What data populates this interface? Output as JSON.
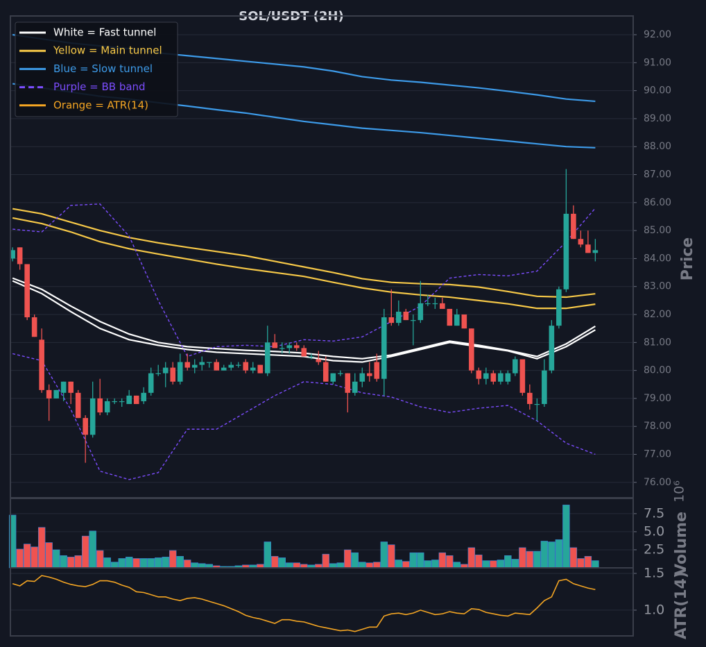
{
  "chart_data": [
    {
      "type": "candlestick",
      "title": "SOL/USDT (2H)",
      "ylabel": "Price",
      "xlim": [
        -0.3,
        85.2
      ],
      "ylim": [
        75.45,
        92.67
      ],
      "grid": true,
      "up_color": "#26a69a",
      "down_color": "#ef5350",
      "yticks": [
        {
          "value": 76,
          "label": "76.00"
        },
        {
          "value": 77,
          "label": "77.00"
        },
        {
          "value": 78,
          "label": "78.00"
        },
        {
          "value": 79,
          "label": "79.00"
        },
        {
          "value": 80,
          "label": "80.00"
        },
        {
          "value": 81,
          "label": "81.00"
        },
        {
          "value": 82,
          "label": "82.00"
        },
        {
          "value": 83,
          "label": "83.00"
        },
        {
          "value": 84,
          "label": "84.00"
        },
        {
          "value": 85,
          "label": "85.00"
        },
        {
          "value": 86,
          "label": "86.00"
        },
        {
          "value": 87,
          "label": "87.00"
        },
        {
          "value": 88,
          "label": "88.00"
        },
        {
          "value": 89,
          "label": "89.00"
        },
        {
          "value": 90,
          "label": "90.00"
        },
        {
          "value": 91,
          "label": "91.00"
        },
        {
          "value": 92,
          "label": "92.00"
        }
      ],
      "ohlc": [
        [
          84.0,
          84.4,
          83.9,
          84.3
        ],
        [
          84.4,
          84.4,
          83.6,
          83.8
        ],
        [
          83.8,
          83.8,
          81.8,
          81.9
        ],
        [
          81.9,
          82.0,
          81.2,
          81.2
        ],
        [
          81.1,
          81.5,
          79.2,
          79.3
        ],
        [
          79.3,
          79.5,
          78.2,
          79.0
        ],
        [
          79.0,
          79.3,
          79.0,
          79.3
        ],
        [
          79.2,
          79.6,
          78.9,
          79.6
        ],
        [
          79.6,
          79.6,
          78.8,
          79.2
        ],
        [
          79.2,
          79.3,
          78.3,
          78.3
        ],
        [
          78.3,
          78.4,
          76.7,
          77.7
        ],
        [
          77.7,
          79.6,
          77.6,
          79.0
        ],
        [
          79.0,
          79.7,
          78.4,
          78.5
        ],
        [
          78.5,
          79.0,
          78.4,
          78.9
        ],
        [
          78.9,
          79.0,
          78.8,
          78.9
        ],
        [
          78.9,
          79.0,
          78.7,
          78.9
        ],
        [
          78.8,
          79.3,
          78.8,
          79.1
        ],
        [
          79.1,
          79.1,
          78.8,
          78.8
        ],
        [
          78.9,
          79.4,
          78.8,
          79.2
        ],
        [
          79.2,
          80.1,
          79.1,
          79.9
        ],
        [
          79.9,
          80.2,
          79.8,
          79.9
        ],
        [
          79.9,
          80.3,
          79.4,
          80.1
        ],
        [
          80.1,
          80.3,
          79.5,
          79.6
        ],
        [
          79.6,
          80.6,
          79.5,
          80.3
        ],
        [
          80.3,
          80.6,
          80.0,
          80.1
        ],
        [
          80.1,
          80.4,
          79.9,
          80.2
        ],
        [
          80.2,
          80.5,
          80.0,
          80.3
        ],
        [
          80.3,
          80.3,
          80.1,
          80.3
        ],
        [
          80.3,
          80.4,
          80.0,
          80.0
        ],
        [
          80.0,
          80.2,
          80.0,
          80.1
        ],
        [
          80.1,
          80.3,
          80.0,
          80.2
        ],
        [
          80.2,
          80.3,
          80.1,
          80.2
        ],
        [
          80.3,
          80.4,
          79.9,
          80.0
        ],
        [
          80.0,
          80.3,
          79.9,
          80.1
        ],
        [
          80.2,
          80.2,
          79.9,
          79.9
        ],
        [
          79.9,
          81.6,
          79.8,
          81.0
        ],
        [
          81.0,
          81.3,
          80.8,
          80.8
        ],
        [
          80.8,
          81.0,
          80.6,
          80.8
        ],
        [
          80.8,
          81.0,
          80.6,
          80.9
        ],
        [
          80.9,
          81.0,
          80.7,
          80.8
        ],
        [
          80.8,
          80.9,
          80.5,
          80.5
        ],
        [
          80.5,
          80.6,
          80.4,
          80.5
        ],
        [
          80.4,
          80.7,
          80.2,
          80.3
        ],
        [
          80.3,
          80.5,
          79.6,
          79.6
        ],
        [
          79.6,
          79.9,
          79.5,
          79.9
        ],
        [
          79.9,
          80.0,
          79.8,
          79.9
        ],
        [
          79.9,
          79.9,
          78.5,
          79.2
        ],
        [
          79.2,
          79.9,
          79.1,
          79.6
        ],
        [
          79.6,
          80.1,
          79.4,
          79.9
        ],
        [
          79.9,
          80.3,
          79.6,
          79.8
        ],
        [
          80.3,
          80.6,
          79.6,
          79.7
        ],
        [
          79.7,
          82.2,
          79.1,
          81.9
        ],
        [
          81.9,
          82.9,
          81.6,
          81.7
        ],
        [
          81.7,
          82.5,
          81.6,
          82.1
        ],
        [
          82.1,
          82.2,
          81.8,
          81.8
        ],
        [
          81.8,
          82.0,
          80.9,
          81.8
        ],
        [
          81.8,
          83.2,
          81.7,
          82.4
        ],
        [
          82.4,
          82.7,
          82.3,
          82.4
        ],
        [
          82.4,
          82.6,
          82.2,
          82.4
        ],
        [
          82.4,
          82.6,
          82.2,
          82.2
        ],
        [
          82.2,
          82.2,
          81.6,
          81.6
        ],
        [
          81.6,
          82.2,
          81.6,
          82.0
        ],
        [
          82.0,
          82.0,
          81.5,
          81.5
        ],
        [
          81.5,
          81.5,
          79.9,
          80.0
        ],
        [
          80.0,
          80.1,
          79.5,
          79.7
        ],
        [
          79.7,
          80.1,
          79.5,
          79.9
        ],
        [
          79.9,
          80.0,
          79.5,
          79.6
        ],
        [
          79.6,
          80.0,
          79.5,
          79.9
        ],
        [
          79.6,
          80.0,
          79.5,
          79.9
        ],
        [
          79.9,
          80.5,
          79.8,
          80.4
        ],
        [
          80.4,
          80.4,
          79.1,
          79.2
        ],
        [
          79.2,
          79.5,
          78.6,
          78.8
        ],
        [
          78.8,
          79.0,
          78.2,
          78.8
        ],
        [
          78.8,
          80.4,
          78.7,
          80.0
        ],
        [
          80.0,
          81.8,
          79.9,
          81.6
        ],
        [
          81.6,
          83.0,
          81.5,
          82.9
        ],
        [
          82.9,
          87.2,
          82.8,
          85.6
        ],
        [
          85.6,
          85.9,
          84.7,
          84.7
        ],
        [
          84.7,
          85.0,
          84.4,
          84.5
        ],
        [
          84.5,
          85.0,
          84.2,
          84.2
        ],
        [
          84.2,
          84.7,
          83.9,
          84.3
        ]
      ],
      "line_x": [
        0,
        4,
        8,
        12,
        16,
        20,
        24,
        28,
        32,
        36,
        40,
        44,
        48,
        52,
        56,
        60,
        64,
        68,
        72,
        76,
        80
      ],
      "series": [
        {
          "name": "White = Fast tunnel",
          "color": "#ffffff",
          "lines": [
            [
              83.3,
              82.9,
              82.3,
              81.75,
              81.3,
              81.0,
              80.85,
              80.78,
              80.72,
              80.68,
              80.62,
              80.5,
              80.42,
              80.55,
              80.8,
              81.05,
              80.9,
              80.72,
              80.5,
              80.95,
              81.58
            ],
            [
              83.2,
              82.75,
              82.1,
              81.5,
              81.1,
              80.9,
              80.75,
              80.65,
              80.6,
              80.55,
              80.5,
              80.35,
              80.3,
              80.5,
              80.75,
              81.0,
              80.85,
              80.7,
              80.42,
              80.85,
              81.45
            ]
          ]
        },
        {
          "name": "Yellow = Main tunnel",
          "color": "#f7c948",
          "lines": [
            [
              85.78,
              85.6,
              85.3,
              85.0,
              84.75,
              84.56,
              84.4,
              84.25,
              84.1,
              83.9,
              83.7,
              83.5,
              83.28,
              83.15,
              83.1,
              83.07,
              82.98,
              82.82,
              82.65,
              82.62,
              82.74
            ],
            [
              85.45,
              85.25,
              84.95,
              84.6,
              84.35,
              84.16,
              83.98,
              83.8,
              83.64,
              83.5,
              83.36,
              83.15,
              82.95,
              82.8,
              82.7,
              82.62,
              82.5,
              82.38,
              82.22,
              82.22,
              82.37
            ]
          ]
        },
        {
          "name": "Blue = Slow tunnel",
          "color": "#3d9be9",
          "lines": [
            [
              92.0,
              91.85,
              91.7,
              91.6,
              91.5,
              91.35,
              91.25,
              91.15,
              91.05,
              90.95,
              90.85,
              90.7,
              90.5,
              90.38,
              90.3,
              90.2,
              90.1,
              89.98,
              89.85,
              89.7,
              89.62
            ],
            [
              90.25,
              90.1,
              89.95,
              89.8,
              89.7,
              89.57,
              89.45,
              89.32,
              89.2,
              89.05,
              88.9,
              88.78,
              88.66,
              88.58,
              88.5,
              88.4,
              88.3,
              88.2,
              88.1,
              88.0,
              87.96
            ]
          ]
        },
        {
          "name": "Purple = BB band",
          "color": "#7c4dff",
          "dash": true,
          "lines": [
            [
              85.05,
              84.95,
              85.9,
              85.95,
              84.8,
              82.5,
              80.5,
              80.85,
              80.9,
              80.85,
              81.1,
              81.05,
              81.2,
              81.75,
              82.3,
              83.3,
              83.43,
              83.38,
              83.55,
              84.6,
              85.8
            ],
            [
              80.6,
              80.35,
              78.6,
              76.4,
              76.1,
              76.35,
              77.9,
              77.9,
              78.5,
              79.1,
              79.6,
              79.5,
              79.2,
              79.05,
              78.7,
              78.5,
              78.65,
              78.75,
              78.2,
              77.4,
              77.0
            ]
          ]
        }
      ]
    },
    {
      "type": "bar",
      "ylabel": "Volume",
      "offset_label": "10⁶",
      "xlim": [
        -0.3,
        85.2
      ],
      "ylim": [
        0,
        9.6
      ],
      "grid": true,
      "yticks": [
        2.5,
        {
          "value": 5,
          "label": "5.0"
        },
        7.5
      ],
      "values": [
        7.3,
        2.6,
        3.3,
        2.9,
        5.6,
        3.5,
        2.5,
        1.7,
        1.5,
        1.7,
        4.4,
        5.1,
        2.4,
        1.4,
        0.8,
        1.3,
        1.5,
        1.3,
        1.3,
        1.3,
        1.4,
        1.5,
        2.4,
        1.6,
        1.1,
        0.7,
        0.6,
        0.5,
        0.3,
        0.2,
        0.2,
        0.3,
        0.4,
        0.4,
        0.5,
        3.6,
        1.6,
        1.4,
        0.7,
        0.7,
        0.5,
        0.4,
        0.5,
        1.9,
        0.6,
        0.7,
        2.5,
        2.1,
        0.8,
        0.7,
        0.8,
        3.6,
        3.2,
        1.1,
        0.9,
        2.1,
        2.1,
        1.0,
        1.1,
        2.1,
        1.7,
        0.8,
        0.5,
        2.8,
        1.8,
        1.0,
        1.0,
        1.1,
        1.7,
        1.2,
        2.8,
        2.3,
        2.3,
        3.7,
        3.6,
        3.9,
        8.7,
        2.8,
        1.3,
        1.6,
        1.0
      ]
    },
    {
      "type": "line",
      "ylabel": "ATR(14)",
      "xlim": [
        -0.3,
        85.2
      ],
      "ylim": [
        0.65,
        1.575
      ],
      "grid": true,
      "yticks": [
        {
          "value": 1,
          "label": "1.0"
        },
        1.5
      ],
      "series": [
        {
          "name": "Orange = ATR(14)",
          "color": "#f5a623",
          "values": [
            1.36,
            1.33,
            1.4,
            1.39,
            1.47,
            1.45,
            1.42,
            1.38,
            1.35,
            1.33,
            1.32,
            1.35,
            1.4,
            1.4,
            1.38,
            1.34,
            1.31,
            1.25,
            1.24,
            1.21,
            1.18,
            1.18,
            1.15,
            1.13,
            1.16,
            1.17,
            1.15,
            1.12,
            1.09,
            1.06,
            1.02,
            0.98,
            0.93,
            0.9,
            0.88,
            0.85,
            0.82,
            0.87,
            0.87,
            0.85,
            0.84,
            0.81,
            0.78,
            0.76,
            0.74,
            0.72,
            0.73,
            0.71,
            0.74,
            0.77,
            0.77,
            0.92,
            0.95,
            0.96,
            0.94,
            0.96,
            1.0,
            0.97,
            0.94,
            0.95,
            0.98,
            0.96,
            0.95,
            1.02,
            1.01,
            0.97,
            0.95,
            0.93,
            0.92,
            0.96,
            0.95,
            0.94,
            1.03,
            1.13,
            1.18,
            1.4,
            1.42,
            1.36,
            1.33,
            1.3,
            1.28
          ]
        }
      ]
    }
  ]
}
